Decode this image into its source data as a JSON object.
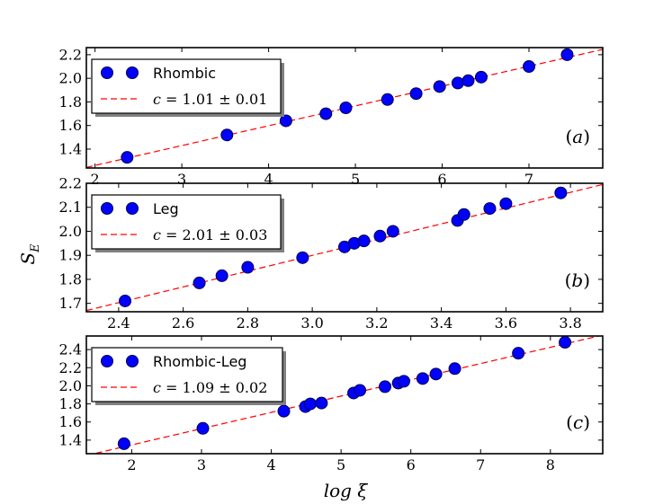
{
  "figure": {
    "ylabel": "S_E",
    "ylabel_main": "S",
    "ylabel_sub": "E",
    "xlabel": "log ξ",
    "point_color": "#0000ff",
    "line_color": "#ff0000"
  },
  "chart_data": [
    {
      "type": "scatter",
      "panel_tag": "(a)",
      "legend": {
        "points_label": "Rhombic",
        "fit_label": "c = 1.01 ± 0.01"
      },
      "xlim": [
        1.9,
        7.85
      ],
      "ylim": [
        1.24,
        2.26
      ],
      "xticks": [
        2,
        3,
        4,
        5,
        6,
        7
      ],
      "yticks": [
        1.4,
        1.6,
        1.8,
        2.0,
        2.2
      ],
      "xtick_labels": [
        "2",
        "3",
        "4",
        "5",
        "6",
        "7"
      ],
      "ytick_labels": [
        "1.4",
        "1.6",
        "1.8",
        "2.0",
        "2.2"
      ],
      "fit": {
        "x": [
          1.9,
          7.85
        ],
        "y": [
          1.245,
          2.245
        ]
      },
      "x": [
        2.37,
        3.52,
        4.2,
        4.66,
        4.89,
        5.37,
        5.7,
        5.97,
        6.18,
        6.3,
        6.45,
        7.0,
        7.44
      ],
      "y": [
        1.33,
        1.52,
        1.64,
        1.7,
        1.75,
        1.82,
        1.87,
        1.93,
        1.96,
        1.98,
        2.01,
        2.1,
        2.2
      ]
    },
    {
      "type": "scatter",
      "panel_tag": "(b)",
      "legend": {
        "points_label": "Leg",
        "fit_label": "c = 2.01 ± 0.03"
      },
      "xlim": [
        2.3,
        3.9
      ],
      "ylim": [
        1.665,
        2.2
      ],
      "xticks": [
        2.4,
        2.6,
        2.8,
        3.0,
        3.2,
        3.4,
        3.6,
        3.8
      ],
      "yticks": [
        1.7,
        1.8,
        1.9,
        2.0,
        2.1,
        2.2
      ],
      "xtick_labels": [
        "2.4",
        "2.6",
        "2.8",
        "3.0",
        "3.2",
        "3.4",
        "3.6",
        "3.8"
      ],
      "ytick_labels": [
        "1.7",
        "1.8",
        "1.9",
        "2.0",
        "2.1",
        "2.2"
      ],
      "fit": {
        "x": [
          2.3,
          3.9
        ],
        "y": [
          1.67,
          2.195
        ]
      },
      "x": [
        2.42,
        2.65,
        2.72,
        2.8,
        2.97,
        3.1,
        3.13,
        3.16,
        3.21,
        3.25,
        3.45,
        3.47,
        3.55,
        3.6,
        3.77
      ],
      "y": [
        1.71,
        1.785,
        1.815,
        1.85,
        1.89,
        1.935,
        1.95,
        1.96,
        1.98,
        2.0,
        2.045,
        2.07,
        2.095,
        2.115,
        2.16
      ]
    },
    {
      "type": "scatter",
      "panel_tag": "(c)",
      "legend": {
        "points_label": "Rhombic-Leg",
        "fit_label": "c = 1.09 ± 0.02"
      },
      "xlim": [
        1.35,
        8.75
      ],
      "ylim": [
        1.25,
        2.55
      ],
      "xticks": [
        2,
        3,
        4,
        5,
        6,
        7,
        8
      ],
      "yticks": [
        1.4,
        1.6,
        1.8,
        2.0,
        2.2,
        2.4
      ],
      "xtick_labels": [
        "2",
        "3",
        "4",
        "5",
        "6",
        "7",
        "8"
      ],
      "ytick_labels": [
        "1.4",
        "1.6",
        "1.8",
        "2.0",
        "2.2",
        "2.4"
      ],
      "fit": {
        "x": [
          1.35,
          8.75
        ],
        "y": [
          1.23,
          2.56
        ]
      },
      "x": [
        1.89,
        3.02,
        4.18,
        4.49,
        4.56,
        4.72,
        5.18,
        5.27,
        5.63,
        5.82,
        5.9,
        6.17,
        6.36,
        6.63,
        7.54,
        8.21
      ],
      "y": [
        1.36,
        1.53,
        1.72,
        1.77,
        1.8,
        1.81,
        1.92,
        1.95,
        1.99,
        2.03,
        2.05,
        2.08,
        2.13,
        2.19,
        2.36,
        2.48
      ]
    }
  ]
}
